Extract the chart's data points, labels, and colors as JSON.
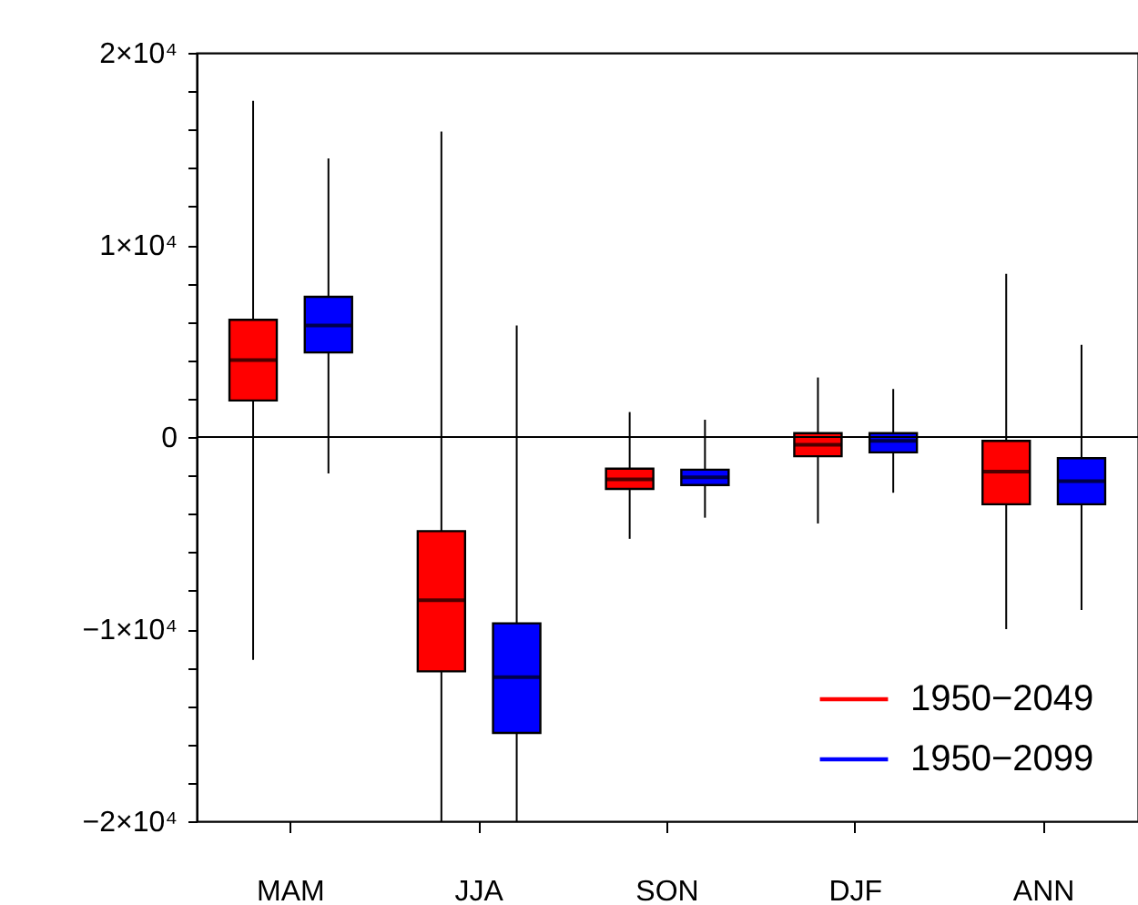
{
  "chart_data": {
    "type": "box",
    "categories": [
      "MAM",
      "JJA",
      "SON",
      "DJF",
      "ANN"
    ],
    "series": [
      {
        "name": "1950−2049",
        "color": "#ff0000",
        "boxes": [
          {
            "low": -11600,
            "q1": 1900,
            "median": 4000,
            "q3": 6100,
            "high": 17500
          },
          {
            "low": -20000,
            "q1": -12200,
            "median": -8500,
            "q3": -4900,
            "high": 15900
          },
          {
            "low": -5300,
            "q1": -2700,
            "median": -2200,
            "q3": -1650,
            "high": 1300
          },
          {
            "low": -4500,
            "q1": -1000,
            "median": -400,
            "q3": 200,
            "high": 3100
          },
          {
            "low": -10000,
            "q1": -3500,
            "median": -1800,
            "q3": -200,
            "high": 8500
          }
        ]
      },
      {
        "name": "1950−2099",
        "color": "#0000ff",
        "boxes": [
          {
            "low": -1900,
            "q1": 4400,
            "median": 5800,
            "q3": 7300,
            "high": 14500
          },
          {
            "low": -20000,
            "q1": -15400,
            "median": -12500,
            "q3": -9700,
            "high": 5800
          },
          {
            "low": -4200,
            "q1": -2500,
            "median": -2100,
            "q3": -1700,
            "high": 900
          },
          {
            "low": -2900,
            "q1": -800,
            "median": -200,
            "q3": 200,
            "high": 2500
          },
          {
            "low": -9000,
            "q1": -3500,
            "median": -2300,
            "q3": -1100,
            "high": 4800
          }
        ]
      }
    ],
    "ylim": [
      -20000,
      20000
    ],
    "yticks": [
      {
        "value": -20000,
        "label": "−2×10⁴"
      },
      {
        "value": -18000,
        "label": null
      },
      {
        "value": -16000,
        "label": null
      },
      {
        "value": -14000,
        "label": null
      },
      {
        "value": -12000,
        "label": null
      },
      {
        "value": -10000,
        "label": "−1×10⁴"
      },
      {
        "value": -8000,
        "label": null
      },
      {
        "value": -6000,
        "label": null
      },
      {
        "value": -4000,
        "label": null
      },
      {
        "value": -2000,
        "label": null
      },
      0,
      {
        "value": 2000,
        "label": null
      },
      {
        "value": 4000,
        "label": null
      },
      {
        "value": 6000,
        "label": null
      },
      {
        "value": 8000,
        "label": null
      },
      {
        "value": 10000,
        "label": "1×10⁴"
      },
      {
        "value": 12000,
        "label": null
      },
      {
        "value": 14000,
        "label": null
      },
      {
        "value": 16000,
        "label": null
      },
      {
        "value": 18000,
        "label": null
      },
      {
        "value": 20000,
        "label": "2×10⁴"
      }
    ],
    "ref_lines": [
      {
        "axis": "y",
        "value": 0
      }
    ],
    "legend": "bottom right"
  }
}
